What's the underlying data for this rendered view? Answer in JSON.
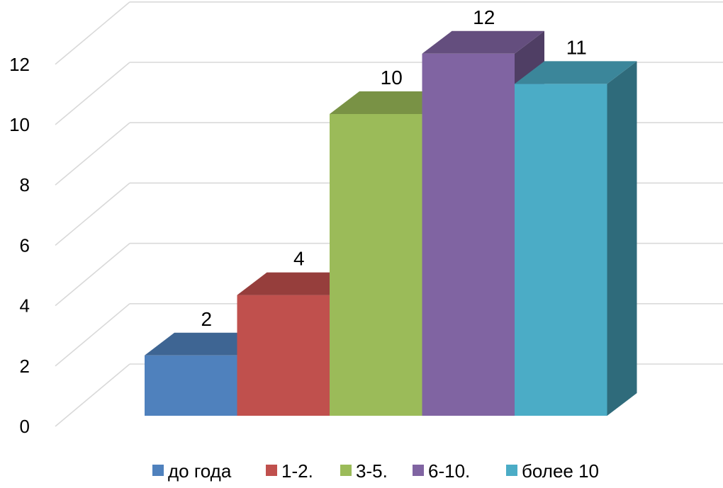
{
  "chart_data": {
    "type": "bar",
    "style": "3d-column",
    "categories": [
      "до года",
      "1-2.",
      "3-5.",
      "6-10.",
      "более 10"
    ],
    "values": [
      2,
      4,
      10,
      12,
      11
    ],
    "data_labels": [
      "2",
      "4",
      "10",
      "12",
      "11"
    ],
    "colors": [
      "#4f81bd",
      "#c0504d",
      "#9bbb59",
      "#8064a2",
      "#4bacc6"
    ],
    "ylim": [
      0,
      12
    ],
    "yticks": [
      0,
      2,
      4,
      6,
      8,
      10,
      12
    ],
    "ytick_labels": [
      "0",
      "2",
      "4",
      "6",
      "8",
      "10",
      "12"
    ],
    "grid": true,
    "legend_position": "bottom",
    "legend": [
      "до года",
      "1-2.",
      "3-5.",
      "6-10.",
      "более 10"
    ]
  }
}
